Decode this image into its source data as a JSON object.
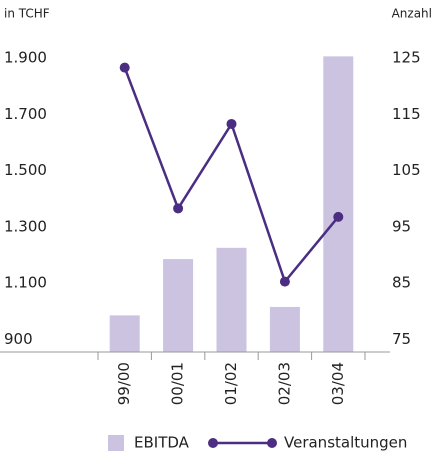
{
  "chart_data": {
    "type": "bar-line",
    "y_label": "in TCHF",
    "y2_label": "Anzahl",
    "categories": [
      "99/00",
      "00/01",
      "01/02",
      "02/03",
      "03/04"
    ],
    "series": [
      {
        "name": "EBITDA",
        "type": "bar",
        "color": "#cbc3e0",
        "values": [
          1000,
          1200,
          1240,
          1030,
          1920
        ]
      },
      {
        "name": "Veranstaltungen",
        "type": "line",
        "axis": "y2",
        "color": "#4b2d82",
        "values": [
          124,
          99,
          114,
          86,
          97.5
        ]
      }
    ],
    "ylim": [
      870,
      1900
    ],
    "yticks": [
      {
        "value": 1900,
        "label": "1.900"
      },
      {
        "value": 1700,
        "label": "1.700"
      },
      {
        "value": 1500,
        "label": "1.500"
      },
      {
        "value": 1300,
        "label": "1.300"
      },
      {
        "value": 1100,
        "label": "1.100"
      },
      900
    ],
    "y2lim": [
      73.5,
      125
    ],
    "y2ticks": [
      125,
      115,
      105,
      95,
      85,
      75
    ],
    "grid": false,
    "legend": "bottom"
  }
}
